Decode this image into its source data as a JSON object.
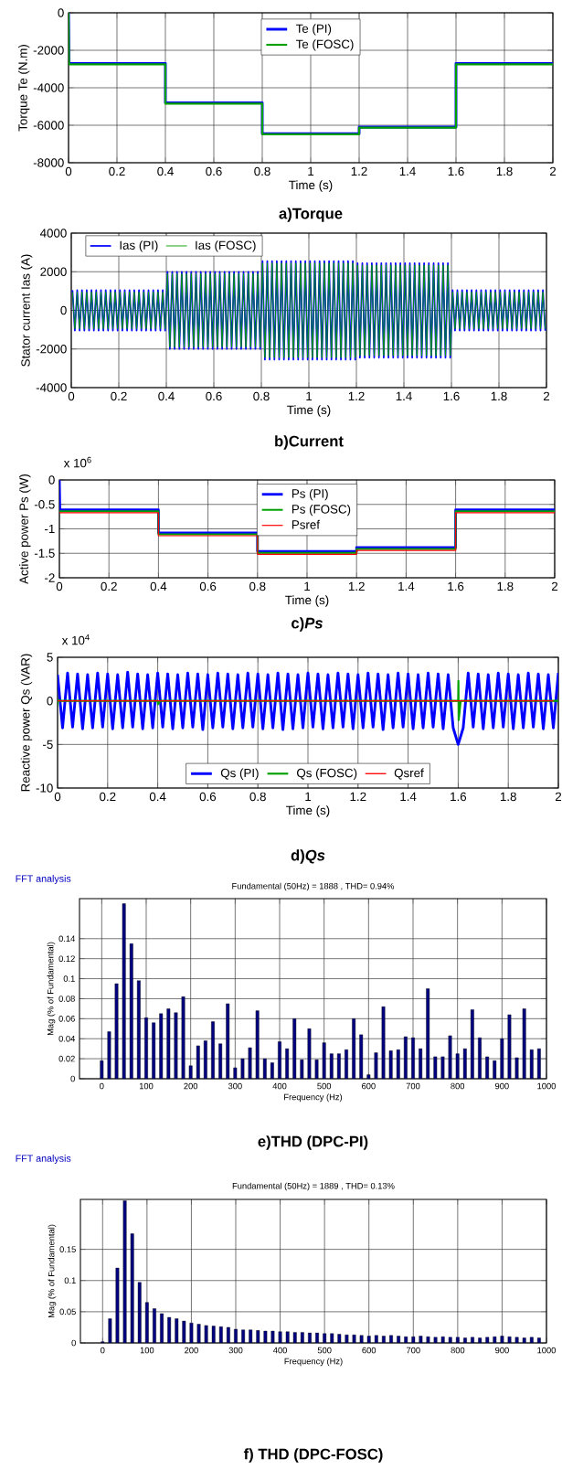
{
  "chart_data": [
    {
      "type": "line",
      "title": "a)Torque",
      "xlabel": "Time (s)",
      "ylabel": "Torque Te (N.m)",
      "xlim": [
        0,
        2
      ],
      "xticks": [
        0,
        0.2,
        0.4,
        0.6,
        0.8,
        1,
        1.2,
        1.4,
        1.6,
        1.8,
        2
      ],
      "ylim": [
        -8000,
        0
      ],
      "yticks": [
        -8000,
        -6000,
        -4000,
        -2000,
        0
      ],
      "grid": true,
      "legend": "top",
      "series": [
        {
          "name": "Te (PI)",
          "color": "#0000ff",
          "x": [
            0,
            0.002,
            0.4,
            0.4,
            0.8,
            0.8,
            1.2,
            1.2,
            1.6,
            1.6,
            2
          ],
          "values": [
            0,
            -2700,
            -2700,
            -4800,
            -4800,
            -6450,
            -6450,
            -6100,
            -6100,
            -2700,
            -2700
          ]
        },
        {
          "name": "Te (FOSC)",
          "color": "#00a000",
          "x": [
            0,
            0.002,
            0.4,
            0.4,
            0.8,
            0.8,
            1.2,
            1.2,
            1.6,
            1.6,
            2
          ],
          "values": [
            0,
            -2750,
            -2750,
            -4850,
            -4850,
            -6480,
            -6480,
            -6130,
            -6130,
            -2750,
            -2750
          ]
        }
      ]
    },
    {
      "type": "line",
      "title": "b)Current",
      "xlabel": "Time (s)",
      "ylabel": "Stator current Ias (A)",
      "xlim": [
        0,
        2
      ],
      "xticks": [
        0,
        0.2,
        0.4,
        0.6,
        0.8,
        1,
        1.2,
        1.4,
        1.6,
        1.8,
        2
      ],
      "ylim": [
        -4000,
        4000
      ],
      "yticks": [
        -4000,
        -2000,
        0,
        2000,
        4000
      ],
      "grid": true,
      "legend": "top left",
      "x": [
        0.005,
        0.015,
        0.025,
        0.035,
        0.045,
        0.055,
        0.065,
        0.075,
        0.085,
        0.095,
        0.105,
        0.115,
        0.125,
        0.135,
        0.145,
        0.155,
        0.165,
        0.175,
        0.185,
        0.195,
        0.205,
        0.215,
        0.225,
        0.235,
        0.245,
        0.255,
        0.265,
        0.275,
        0.285,
        0.295,
        0.305,
        0.315,
        0.325,
        0.335,
        0.345,
        0.355,
        0.365,
        0.375,
        0.385,
        0.395,
        0.405,
        0.415,
        0.425,
        0.435,
        0.445,
        0.455,
        0.465,
        0.475,
        0.485,
        0.495,
        0.505,
        0.515,
        0.525,
        0.535,
        0.545,
        0.555,
        0.565,
        0.575,
        0.585,
        0.595,
        0.605,
        0.615,
        0.625,
        0.635,
        0.645,
        0.655,
        0.665,
        0.675,
        0.685,
        0.695,
        0.705,
        0.715,
        0.725,
        0.735,
        0.745,
        0.755,
        0.765,
        0.775,
        0.785,
        0.795,
        0.805,
        0.815,
        0.825,
        0.835,
        0.845,
        0.855,
        0.865,
        0.875,
        0.885,
        0.895,
        0.905,
        0.915,
        0.925,
        0.935,
        0.945,
        0.955,
        0.965,
        0.975,
        0.985,
        0.995,
        1.005,
        1.015,
        1.025,
        1.035,
        1.045,
        1.055,
        1.065,
        1.075,
        1.085,
        1.095,
        1.105,
        1.115,
        1.125,
        1.135,
        1.145,
        1.155,
        1.165,
        1.175,
        1.185,
        1.195,
        1.205,
        1.215,
        1.225,
        1.235,
        1.245,
        1.255,
        1.265,
        1.275,
        1.285,
        1.295,
        1.305,
        1.315,
        1.325,
        1.335,
        1.345,
        1.355,
        1.365,
        1.375,
        1.385,
        1.395,
        1.405,
        1.415,
        1.425,
        1.435,
        1.445,
        1.455,
        1.465,
        1.475,
        1.485,
        1.495,
        1.505,
        1.515,
        1.525,
        1.535,
        1.545,
        1.555,
        1.565,
        1.575,
        1.585,
        1.595,
        1.605,
        1.615,
        1.625,
        1.635,
        1.645,
        1.655,
        1.665,
        1.675,
        1.685,
        1.695,
        1.705,
        1.715,
        1.725,
        1.735,
        1.745,
        1.755,
        1.765,
        1.775,
        1.785,
        1.795,
        1.805,
        1.815,
        1.825,
        1.835,
        1.845,
        1.855,
        1.865,
        1.875,
        1.885,
        1.895,
        1.905,
        1.915,
        1.925,
        1.935,
        1.945,
        1.955,
        1.965,
        1.975,
        1.985,
        1.995
      ],
      "series": [
        {
          "name": "Ias (PI)",
          "color": "#0000ff",
          "values": [
            1050,
            -1050,
            1050,
            -1050,
            1050,
            -1050,
            1050,
            -1050,
            1050,
            -1050,
            1050,
            -1050,
            1050,
            -1050,
            1050,
            -1050,
            1050,
            -1050,
            1050,
            -1050,
            1050,
            -1050,
            1050,
            -1050,
            1050,
            -1050,
            1050,
            -1050,
            1050,
            -1050,
            1050,
            -1050,
            1050,
            -1050,
            1050,
            -1050,
            1050,
            -1050,
            1050,
            -1050,
            2000,
            -2000,
            2000,
            -2000,
            2000,
            -2000,
            2000,
            -2000,
            2000,
            -2000,
            2000,
            -2000,
            2000,
            -2000,
            2000,
            -2000,
            2000,
            -2000,
            2000,
            -2000,
            2000,
            -2000,
            2000,
            -2000,
            2000,
            -2000,
            2000,
            -2000,
            2000,
            -2000,
            2000,
            -2000,
            2000,
            -2000,
            2000,
            -2000,
            2000,
            -2000,
            2000,
            -2000,
            2550,
            -2550,
            2550,
            -2550,
            2550,
            -2550,
            2550,
            -2550,
            2550,
            -2550,
            2550,
            -2550,
            2550,
            -2550,
            2550,
            -2550,
            2550,
            -2550,
            2550,
            -2550,
            2550,
            -2550,
            2550,
            -2550,
            2550,
            -2550,
            2550,
            -2550,
            2550,
            -2550,
            2550,
            -2550,
            2550,
            -2550,
            2550,
            -2550,
            2550,
            -2550,
            2550,
            -2550,
            2450,
            -2450,
            2450,
            -2450,
            2450,
            -2450,
            2450,
            -2450,
            2450,
            -2450,
            2450,
            -2450,
            2450,
            -2450,
            2450,
            -2450,
            2450,
            -2450,
            2450,
            -2450,
            2450,
            -2450,
            2450,
            -2450,
            2450,
            -2450,
            2450,
            -2450,
            2450,
            -2450,
            2450,
            -2450,
            2450,
            -2450,
            2450,
            -2450,
            2450,
            -2450,
            2450,
            -2450,
            1050,
            -1050,
            1050,
            -1050,
            1050,
            -1050,
            1050,
            -1050,
            1050,
            -1050,
            1050,
            -1050,
            1050,
            -1050,
            1050,
            -1050,
            1050,
            -1050,
            1050,
            -1050,
            1050,
            -1050,
            1050,
            -1050,
            1050,
            -1050,
            1050,
            -1050,
            1050,
            -1050,
            1050,
            -1050,
            1050,
            -1050,
            1050,
            -1050,
            1050,
            -1050,
            1050,
            -1050
          ]
        },
        {
          "name": "Ias (FOSC)",
          "color": "#00a000",
          "values": [
            950,
            -950,
            950,
            -950,
            950,
            -950,
            950,
            -950,
            950,
            -950,
            950,
            -950,
            950,
            -950,
            950,
            -950,
            950,
            -950,
            950,
            -950,
            950,
            -950,
            950,
            -950,
            950,
            -950,
            950,
            -950,
            950,
            -950,
            950,
            -950,
            950,
            -950,
            950,
            -950,
            950,
            -950,
            950,
            -950,
            1900,
            -1900,
            1900,
            -1900,
            1900,
            -1900,
            1900,
            -1900,
            1900,
            -1900,
            1900,
            -1900,
            1900,
            -1900,
            1900,
            -1900,
            1900,
            -1900,
            1900,
            -1900,
            1900,
            -1900,
            1900,
            -1900,
            1900,
            -1900,
            1900,
            -1900,
            1900,
            -1900,
            1900,
            -1900,
            1900,
            -1900,
            1900,
            -1900,
            1900,
            -1900,
            1900,
            -1900,
            2450,
            -2450,
            2450,
            -2450,
            2450,
            -2450,
            2450,
            -2450,
            2450,
            -2450,
            2450,
            -2450,
            2450,
            -2450,
            2450,
            -2450,
            2450,
            -2450,
            2450,
            -2450,
            2450,
            -2450,
            2450,
            -2450,
            2450,
            -2450,
            2450,
            -2450,
            2450,
            -2450,
            2450,
            -2450,
            2450,
            -2450,
            2450,
            -2450,
            2450,
            -2450,
            2450,
            -2450,
            2350,
            -2350,
            2350,
            -2350,
            2350,
            -2350,
            2350,
            -2350,
            2350,
            -2350,
            2350,
            -2350,
            2350,
            -2350,
            2350,
            -2350,
            2350,
            -2350,
            2350,
            -2350,
            2350,
            -2350,
            2350,
            -2350,
            2350,
            -2350,
            2350,
            -2350,
            2350,
            -2350,
            2350,
            -2350,
            2350,
            -2350,
            2350,
            -2350,
            2350,
            -2350,
            2350,
            -2350,
            950,
            -950,
            950,
            -950,
            950,
            -950,
            950,
            -950,
            950,
            -950,
            950,
            -950,
            950,
            -950,
            950,
            -950,
            950,
            -950,
            950,
            -950,
            950,
            -950,
            950,
            -950,
            950,
            -950,
            950,
            -950,
            950,
            -950,
            950,
            -950,
            950,
            -950,
            950,
            -950,
            950,
            -950,
            950,
            -950
          ]
        }
      ]
    },
    {
      "type": "line",
      "title": "c)*Ps*",
      "xlabel": "Time (s)",
      "ylabel": "Active power Ps (W)",
      "annotations": [
        "x 10$^{6}$"
      ],
      "xlim": [
        0,
        2
      ],
      "xticks": [
        0,
        0.2,
        0.4,
        0.6,
        0.8,
        1,
        1.2,
        1.4,
        1.6,
        1.8,
        2
      ],
      "ylim": [
        -2,
        0
      ],
      "yticks": [
        -2,
        -1.5,
        -1,
        -0.5,
        0
      ],
      "grid": true,
      "legend": "top",
      "series": [
        {
          "name": "Ps (PI)",
          "color": "#0000ff",
          "x": [
            0,
            0.002,
            0.4,
            0.4,
            0.8,
            0.8,
            1.2,
            1.2,
            1.6,
            1.6,
            2
          ],
          "values": [
            0,
            -0.61,
            -0.61,
            -1.08,
            -1.08,
            -1.46,
            -1.46,
            -1.38,
            -1.38,
            -0.61,
            -0.61
          ]
        },
        {
          "name": "Ps (FOSC)",
          "color": "#00a000",
          "x": [
            0,
            0.4,
            0.4,
            0.8,
            0.8,
            1.2,
            1.2,
            1.6,
            1.6,
            2
          ],
          "values": [
            -0.64,
            -0.64,
            -1.11,
            -1.11,
            -1.49,
            -1.49,
            -1.41,
            -1.41,
            -0.64,
            -0.64
          ]
        },
        {
          "name": "Psref",
          "color": "#ff0000",
          "x": [
            0,
            0.4,
            0.4,
            0.8,
            0.8,
            1.2,
            1.2,
            1.6,
            1.6,
            2
          ],
          "values": [
            -0.67,
            -0.67,
            -1.14,
            -1.14,
            -1.52,
            -1.52,
            -1.44,
            -1.44,
            -0.67,
            -0.67
          ]
        }
      ]
    },
    {
      "type": "line",
      "title": "d)*Qs*",
      "xlabel": "Time (s)",
      "ylabel": "Reactive power Qs (VAR)",
      "annotations": [
        "x 10$^{4}$"
      ],
      "xlim": [
        0,
        2
      ],
      "xticks": [
        0,
        0.2,
        0.4,
        0.6,
        0.8,
        1,
        1.2,
        1.4,
        1.6,
        1.8,
        2
      ],
      "ylim": [
        -10,
        5
      ],
      "yticks": [
        -10,
        -5,
        0,
        5
      ],
      "grid": true,
      "legend": "bottom",
      "series": [
        {
          "name": "Qs (PI)",
          "color": "#0000ff",
          "x": [
            0,
            0.02,
            0.04,
            0.06,
            0.08,
            0.1,
            0.12,
            0.14,
            0.16,
            0.18,
            0.2,
            0.22,
            0.24,
            0.26,
            0.28,
            0.3,
            0.32,
            0.34,
            0.36,
            0.38,
            0.4,
            0.42,
            0.44,
            0.46,
            0.48,
            0.5,
            0.52,
            0.54,
            0.56,
            0.58,
            0.6,
            0.62,
            0.64,
            0.66,
            0.68,
            0.7,
            0.72,
            0.74,
            0.76,
            0.78,
            0.8,
            0.82,
            0.84,
            0.86,
            0.88,
            0.9,
            0.92,
            0.94,
            0.96,
            0.98,
            1,
            1.02,
            1.04,
            1.06,
            1.08,
            1.1,
            1.12,
            1.14,
            1.16,
            1.18,
            1.2,
            1.22,
            1.24,
            1.26,
            1.28,
            1.3,
            1.32,
            1.34,
            1.36,
            1.38,
            1.4,
            1.42,
            1.44,
            1.46,
            1.48,
            1.5,
            1.52,
            1.54,
            1.56,
            1.58,
            1.6,
            1.62,
            1.64,
            1.66,
            1.68,
            1.7,
            1.72,
            1.74,
            1.76,
            1.78,
            1.8,
            1.82,
            1.84,
            1.86,
            1.88,
            1.9,
            1.92,
            1.94,
            1.96,
            1.98,
            2
          ],
          "values": [
            3,
            -3.1,
            3.2,
            -3,
            3.1,
            -3.2,
            3,
            -3.1,
            3.2,
            -3,
            3.1,
            -3.2,
            3,
            -3.1,
            3.3,
            -3,
            3.1,
            -3.2,
            3,
            -3.1,
            3.2,
            -3,
            3.1,
            -3.2,
            3,
            -3.1,
            3.2,
            -3,
            3.1,
            -3.3,
            3,
            -3.1,
            3.2,
            -3,
            3.1,
            -3.2,
            3,
            -3.1,
            3.2,
            -3,
            3.1,
            -3.2,
            3,
            -3.1,
            3.2,
            -3.3,
            3.1,
            -3.2,
            3,
            -3.1,
            3.2,
            -3,
            3.1,
            -3.2,
            3,
            -3.1,
            3.2,
            -3,
            3.1,
            -3.2,
            3,
            -3.1,
            3.2,
            -3,
            3.1,
            -3.3,
            3,
            -3.1,
            3.2,
            -3,
            3.1,
            -3.2,
            3,
            -3.1,
            3.2,
            -3,
            3.1,
            -3.2,
            3,
            -3.1,
            -5,
            -3.1,
            3.2,
            -3,
            3.1,
            -3.2,
            3,
            -3.1,
            3.2,
            -3,
            3.1,
            -3.2,
            3,
            -3.1,
            3.2,
            -3,
            3.1,
            -3.2,
            3,
            -3.1,
            3.2
          ]
        },
        {
          "name": "Qs (FOSC)",
          "color": "#00a000",
          "x": [
            0,
            0.001,
            0.01,
            0.4,
            0.401,
            0.41,
            1.6,
            1.601,
            1.602,
            1.61,
            2
          ],
          "values": [
            -0.5,
            0.1,
            0,
            0,
            -0.4,
            0,
            0,
            2.3,
            -2.2,
            0,
            0
          ]
        },
        {
          "name": "Qsref",
          "color": "#ff0000",
          "x": [
            0,
            1.98
          ],
          "values": [
            0,
            0
          ]
        }
      ]
    },
    {
      "type": "bar",
      "title": "e)THD (DPC-PI)",
      "subtitle": "Fundamental (50Hz) = 1888 , THD= 0.94%",
      "annotations": [
        "FFT analysis"
      ],
      "xlabel": "Frequency (Hz)",
      "ylabel": "Mag (% of Fundamental)",
      "xlim": [
        -50,
        1000
      ],
      "xticks": [
        0,
        100,
        200,
        300,
        400,
        500,
        600,
        700,
        800,
        900,
        1000
      ],
      "ylim": [
        0,
        0.18
      ],
      "yticks": [
        0,
        0.02,
        0.04,
        0.06,
        0.08,
        0.1,
        0.12,
        0.14
      ],
      "grid": true,
      "x": [
        0,
        16.7,
        33.3,
        50,
        66.7,
        83.3,
        100,
        116.7,
        133.3,
        150,
        166.7,
        183.3,
        200,
        216.7,
        233.3,
        250,
        266.7,
        283.3,
        300,
        316.7,
        333.3,
        350,
        366.7,
        383.3,
        400,
        416.7,
        433.3,
        450,
        466.7,
        483.3,
        500,
        516.7,
        533.3,
        550,
        566.7,
        583.3,
        600,
        616.7,
        633.3,
        650,
        666.7,
        683.3,
        700,
        716.7,
        733.3,
        750,
        766.7,
        783.3,
        800,
        816.7,
        833.3,
        850,
        866.7,
        883.3,
        900,
        916.7,
        933.3,
        950,
        966.7,
        983.3
      ],
      "series": [
        {
          "color": "#000080",
          "values": [
            0.018,
            0.047,
            0.095,
            0.175,
            0.135,
            0.098,
            0.061,
            0.056,
            0.065,
            0.07,
            0.066,
            0.082,
            0.013,
            0.033,
            0.038,
            0.057,
            0.035,
            0.075,
            0.011,
            0.02,
            0.031,
            0.068,
            0.02,
            0.016,
            0.037,
            0.03,
            0.06,
            0.019,
            0.05,
            0.019,
            0.036,
            0.025,
            0.025,
            0.029,
            0.06,
            0.044,
            0.004,
            0.026,
            0.072,
            0.028,
            0.029,
            0.042,
            0.041,
            0.03,
            0.09,
            0.022,
            0.022,
            0.043,
            0.025,
            0.03,
            0.069,
            0.041,
            0.022,
            0.018,
            0.04,
            0.064,
            0.021,
            0.07,
            0.029,
            0.03
          ]
        }
      ]
    },
    {
      "type": "bar",
      "title": "f) THD (DPC-FOSC)",
      "subtitle": "Fundamental (50Hz) = 1889 , THD= 0.13%",
      "annotations": [
        "FFT analysis"
      ],
      "xlabel": "Frequency (Hz)",
      "ylabel": "Mag (% of Fundamental)",
      "xlim": [
        -50,
        1000
      ],
      "xticks": [
        0,
        100,
        200,
        300,
        400,
        500,
        600,
        700,
        800,
        900,
        1000
      ],
      "ylim": [
        0,
        0.23
      ],
      "yticks": [
        0,
        0.05,
        0.1,
        0.15
      ],
      "grid": true,
      "x": [
        0,
        16.7,
        33.3,
        50,
        66.7,
        83.3,
        100,
        116.7,
        133.3,
        150,
        166.7,
        183.3,
        200,
        216.7,
        233.3,
        250,
        266.7,
        283.3,
        300,
        316.7,
        333.3,
        350,
        366.7,
        383.3,
        400,
        416.7,
        433.3,
        450,
        466.7,
        483.3,
        500,
        516.7,
        533.3,
        550,
        566.7,
        583.3,
        600,
        616.7,
        633.3,
        650,
        666.7,
        683.3,
        700,
        716.7,
        733.3,
        750,
        766.7,
        783.3,
        800,
        816.7,
        833.3,
        850,
        866.7,
        883.3,
        900,
        916.7,
        933.3,
        950,
        966.7,
        983.3
      ],
      "series": [
        {
          "color": "#000080",
          "values": [
            0.002,
            0.039,
            0.12,
            0.228,
            0.175,
            0.097,
            0.065,
            0.055,
            0.047,
            0.041,
            0.039,
            0.035,
            0.032,
            0.03,
            0.028,
            0.027,
            0.026,
            0.025,
            0.022,
            0.021,
            0.021,
            0.02,
            0.019,
            0.019,
            0.018,
            0.018,
            0.017,
            0.017,
            0.016,
            0.016,
            0.015,
            0.015,
            0.014,
            0.013,
            0.013,
            0.012,
            0.011,
            0.012,
            0.011,
            0.012,
            0.011,
            0.01,
            0.01,
            0.011,
            0.01,
            0.009,
            0.01,
            0.009,
            0.009,
            0.008,
            0.009,
            0.008,
            0.009,
            0.01,
            0.011,
            0.01,
            0.009,
            0.008,
            0.009,
            0.008
          ]
        }
      ]
    }
  ]
}
